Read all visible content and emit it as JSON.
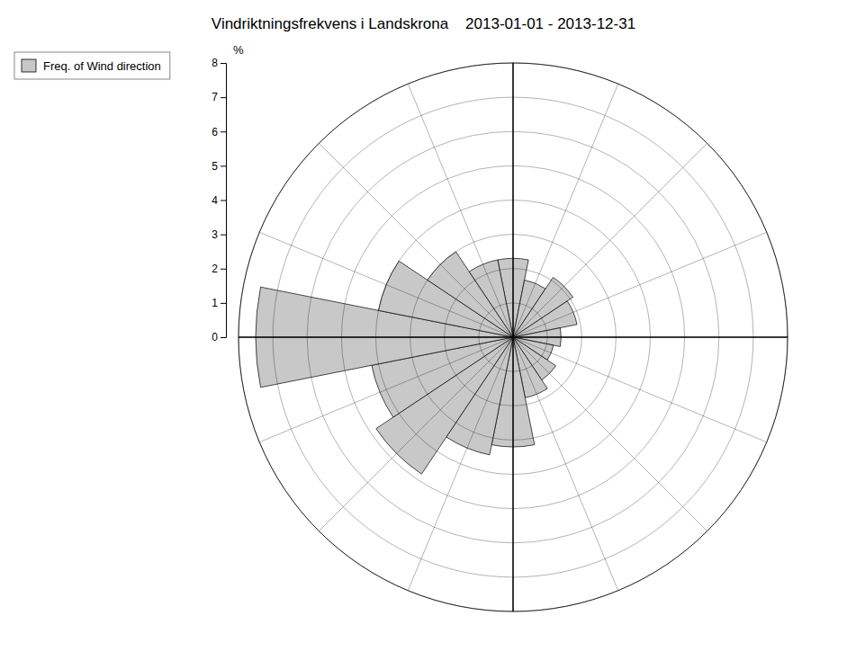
{
  "chart_data": {
    "type": "polar_bar",
    "title": "Vindriktningsfrekvens i Landskrona    2013-01-01 - 2013-12-31",
    "y_label": "%",
    "categories": [
      null,
      null,
      null,
      null,
      null,
      null,
      null,
      null,
      null,
      null,
      null,
      null,
      null,
      null,
      null,
      null
    ],
    "series": [
      {
        "name": "Freq. of Wind direction",
        "color": "#c8c8c8",
        "values": [
          2.3,
          1.7,
          2.1,
          1.9,
          1.4,
          1.2,
          1.5,
          1.8,
          3.2,
          3.5,
          4.8,
          4.2,
          7.5,
          4.0,
          3.0,
          2.3
        ]
      }
    ],
    "ylim": [
      0,
      8
    ],
    "yticks": [
      0,
      1,
      2,
      3,
      4,
      5,
      6,
      7,
      8
    ],
    "grid": true,
    "legend": "upper left",
    "tick_labels": "y"
  }
}
